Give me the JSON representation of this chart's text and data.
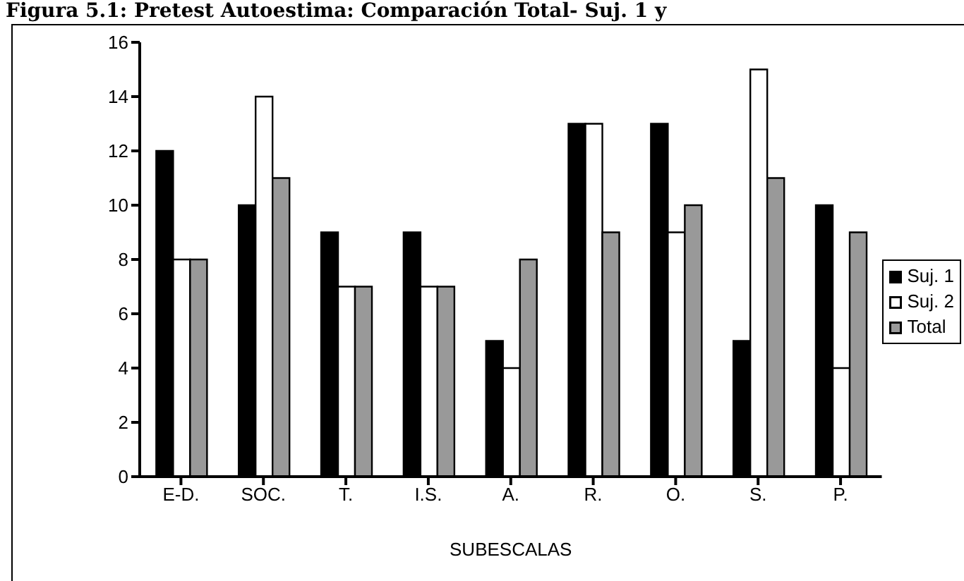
{
  "chart_data": {
    "type": "bar",
    "title": "Figura 5.1: Pretest Autoestima: Comparación Total- Suj. 1 y",
    "xlabel": "SUBESCALAS",
    "categories": [
      "E-D.",
      "SOC.",
      "T.",
      "I.S.",
      "A.",
      "R.",
      "O.",
      "S.",
      "P."
    ],
    "series": [
      {
        "name": "Suj. 1",
        "color": "#000000",
        "values": [
          12,
          10,
          9,
          9,
          5,
          13,
          13,
          5,
          10
        ]
      },
      {
        "name": "Suj. 2",
        "color": "#ffffff",
        "values": [
          8,
          14,
          7,
          7,
          4,
          13,
          9,
          15,
          4
        ]
      },
      {
        "name": "Total",
        "color": "#999999",
        "values": [
          8,
          11,
          7,
          7,
          8,
          9,
          10,
          11,
          9
        ]
      }
    ],
    "ylim": [
      0,
      16
    ],
    "yticks": [
      0,
      2,
      4,
      6,
      8,
      10,
      12,
      14,
      16
    ],
    "grid": false,
    "legend": "right"
  }
}
